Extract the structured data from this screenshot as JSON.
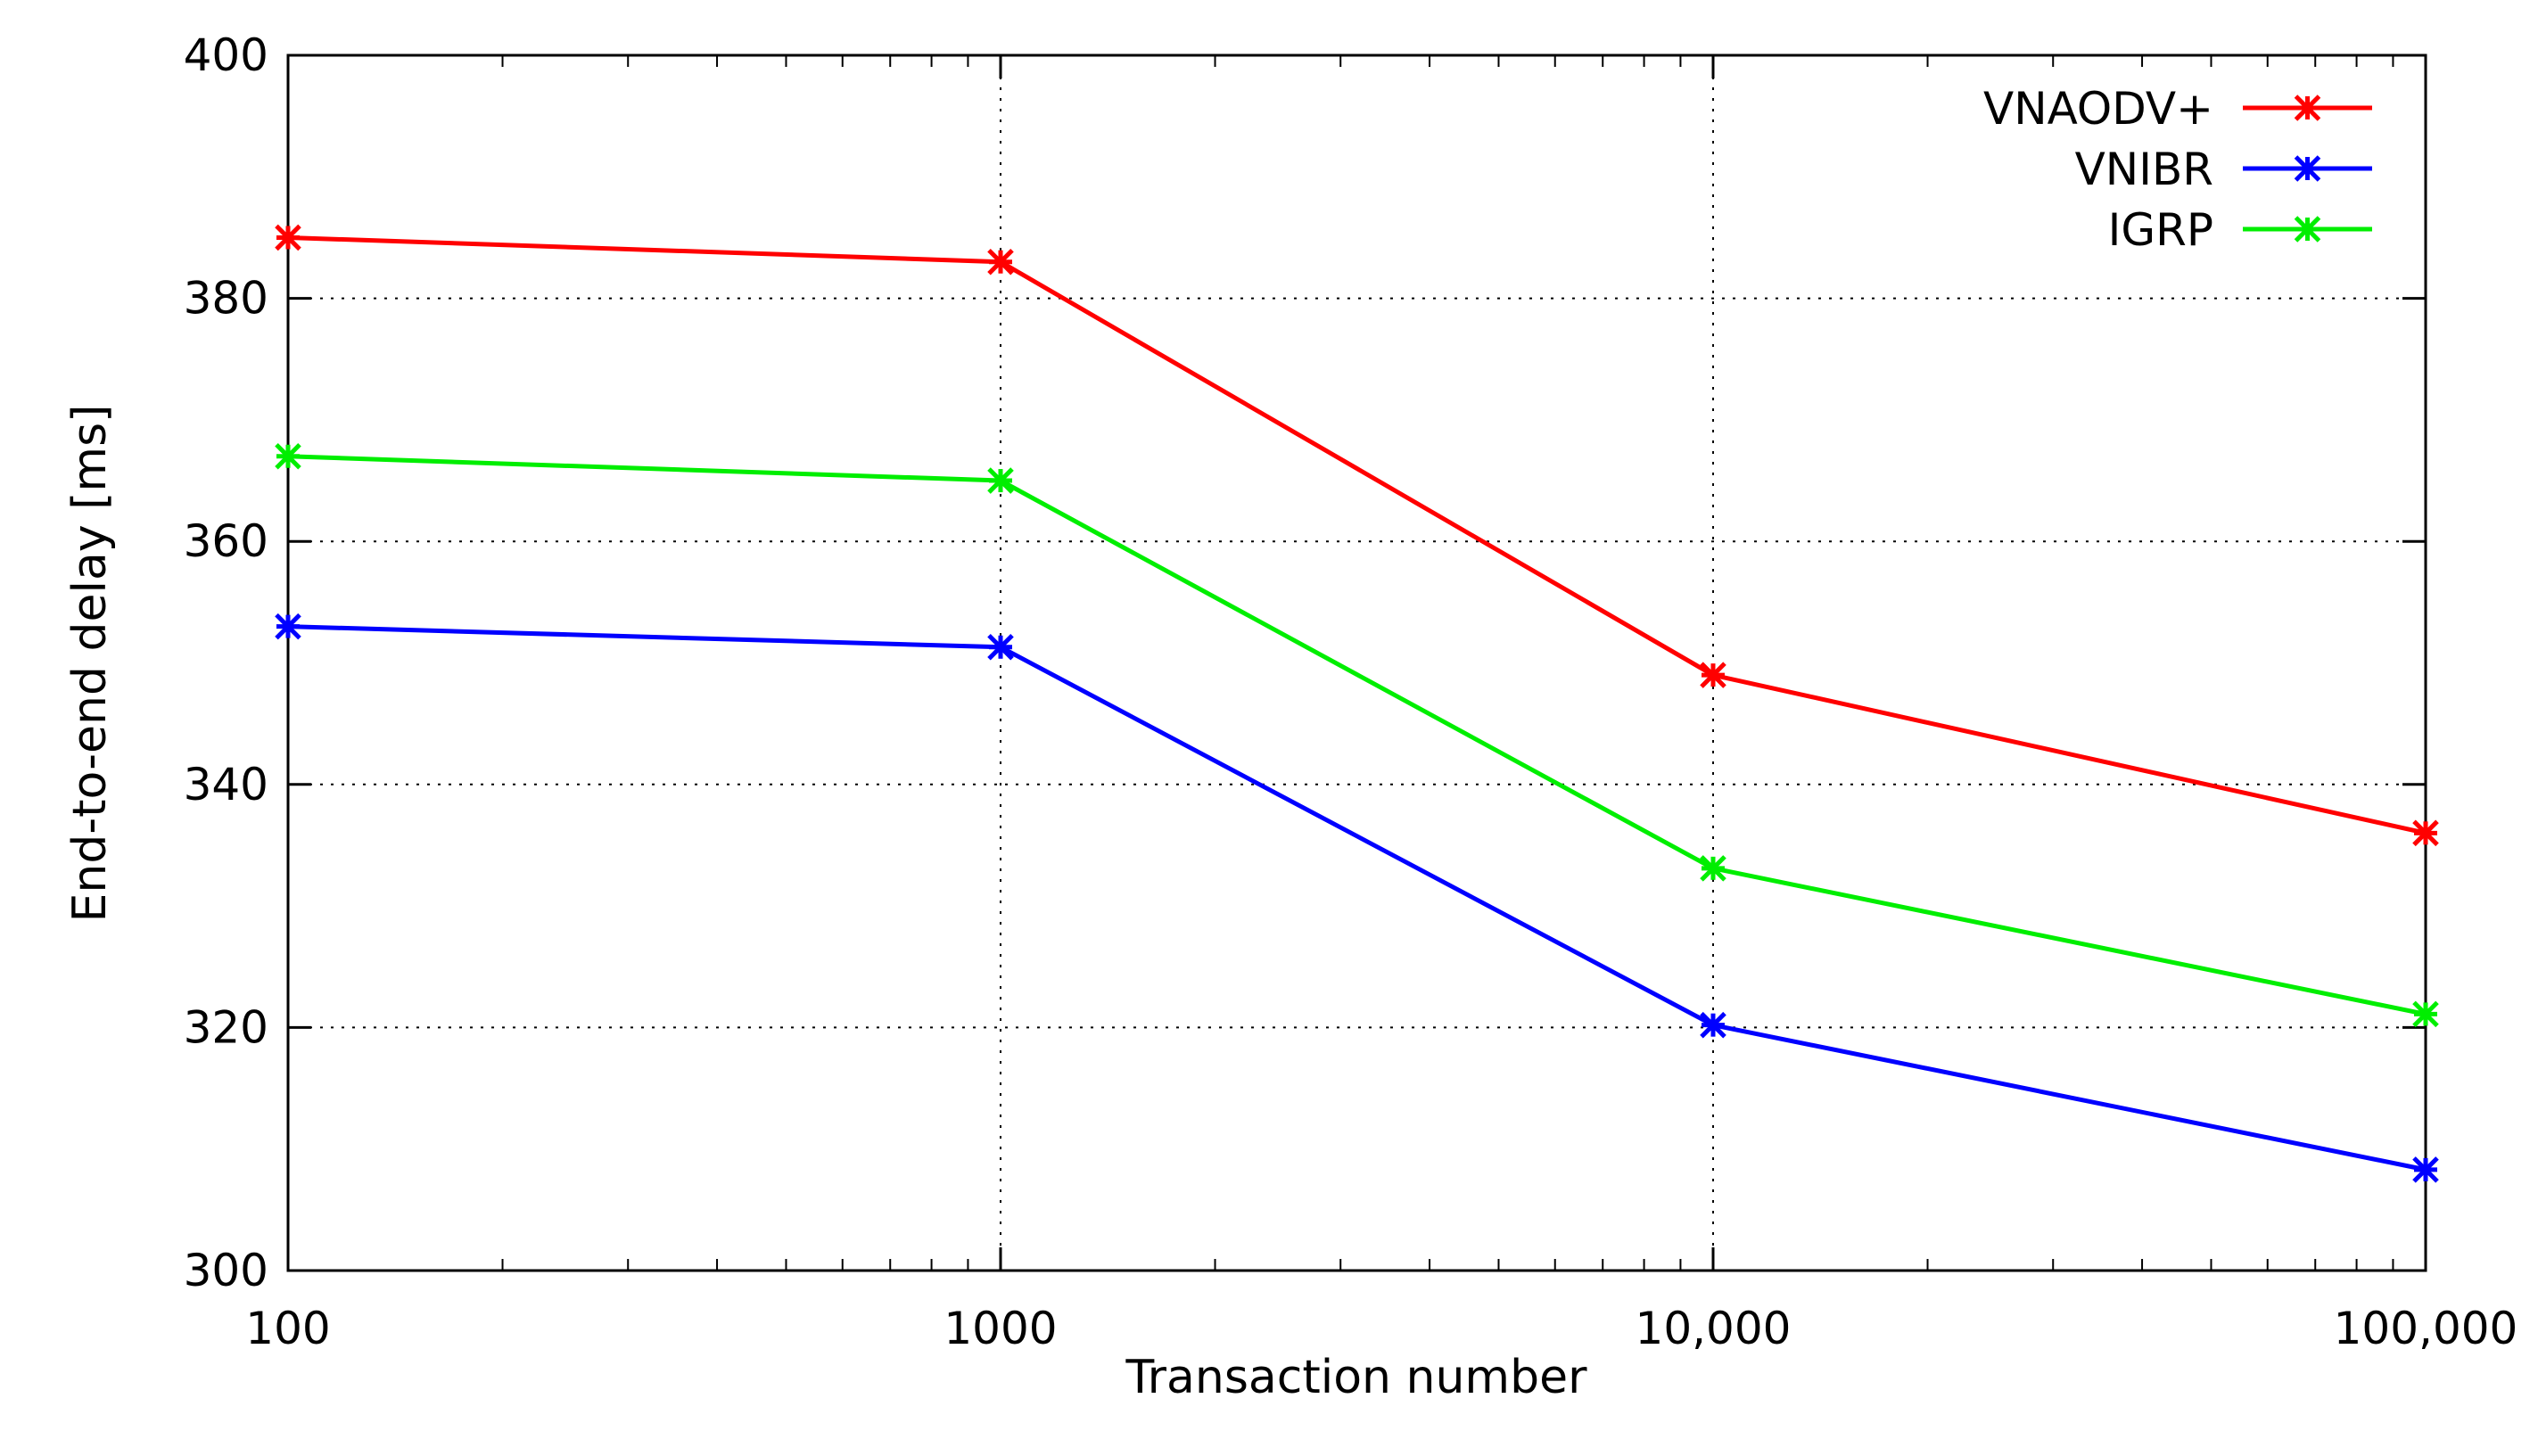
{
  "chart_data": {
    "type": "line",
    "xscale": "log",
    "yscale": "linear",
    "xlabel": "Transaction number",
    "ylabel": "End-to-end delay [ms]",
    "xlim": [
      100,
      100000
    ],
    "ylim": [
      300,
      400
    ],
    "grid": true,
    "legend_position": "top-right",
    "x": [
      100,
      1000,
      10000,
      100000
    ],
    "x_tick_labels": [
      "100",
      "1000",
      "10,000",
      "100,000"
    ],
    "y_ticks": [
      300,
      320,
      340,
      360,
      380,
      400
    ],
    "y_tick_labels": [
      "300",
      "320",
      "340",
      "360",
      "380",
      "400"
    ],
    "series": [
      {
        "name": "VNAODV+",
        "color": "#ff0000",
        "values": [
          385,
          383,
          349,
          336
        ]
      },
      {
        "name": "VNIBR",
        "color": "#0000ff",
        "values": [
          353,
          351.3,
          320.2,
          308.3
        ]
      },
      {
        "name": "IGRP",
        "color": "#00ee00",
        "values": [
          367,
          365,
          333.1,
          321.1
        ]
      }
    ]
  }
}
